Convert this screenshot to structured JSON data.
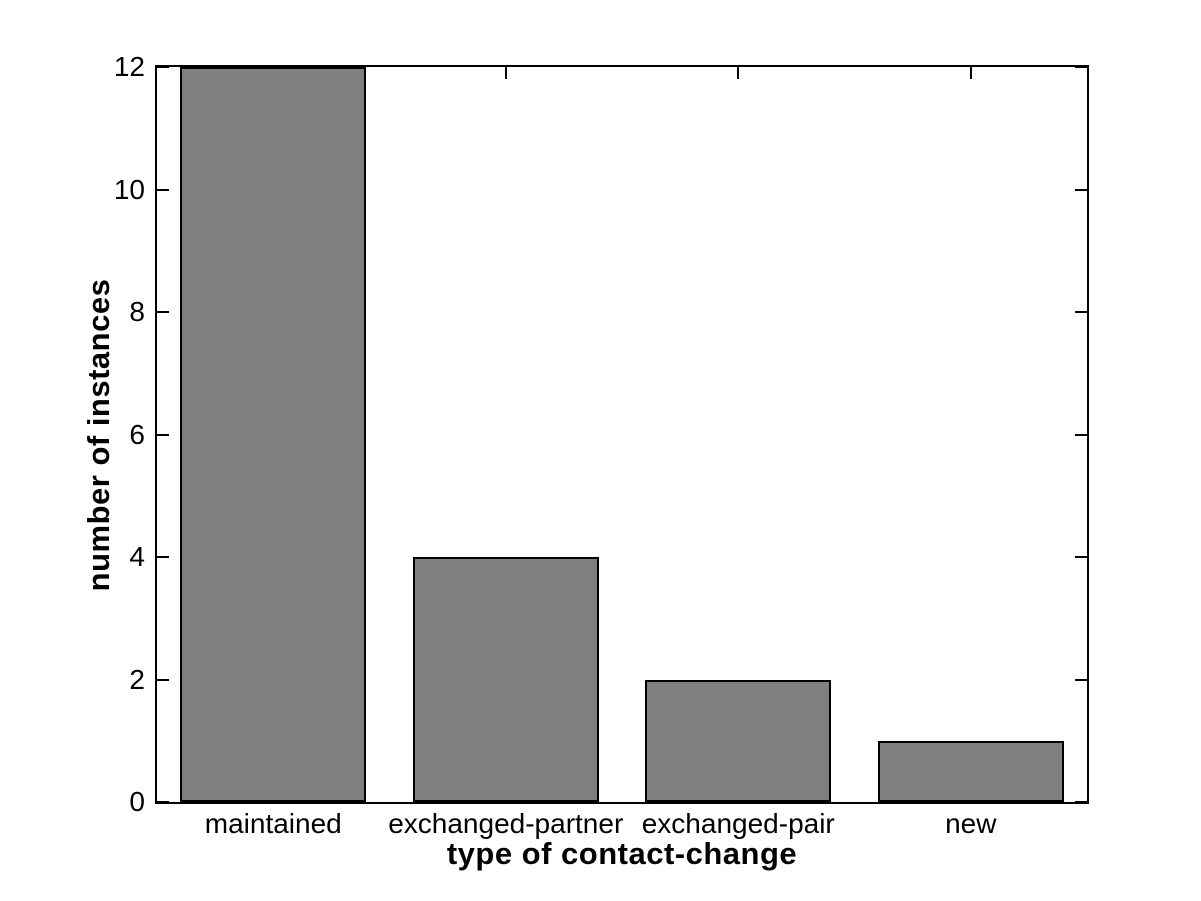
{
  "chart_data": {
    "type": "bar",
    "categories": [
      "maintained",
      "exchanged-partner",
      "exchanged-pair",
      "new"
    ],
    "values": [
      12,
      4,
      2,
      1
    ],
    "xlabel": "type of contact-change",
    "ylabel": "number of instances",
    "ylim": [
      0,
      12
    ],
    "yticks": [
      0,
      2,
      4,
      6,
      8,
      10,
      12
    ],
    "ytick_labels": [
      "0",
      "2",
      "4",
      "6",
      "8",
      "10",
      "12"
    ],
    "bar_width_fraction": 0.8,
    "grid": false,
    "legend_shown": false,
    "colors": {
      "bar_fill": "#7f7f7f",
      "bar_edge": "#000000",
      "axis": "#000000",
      "text": "#000000",
      "background": "#ffffff"
    }
  }
}
